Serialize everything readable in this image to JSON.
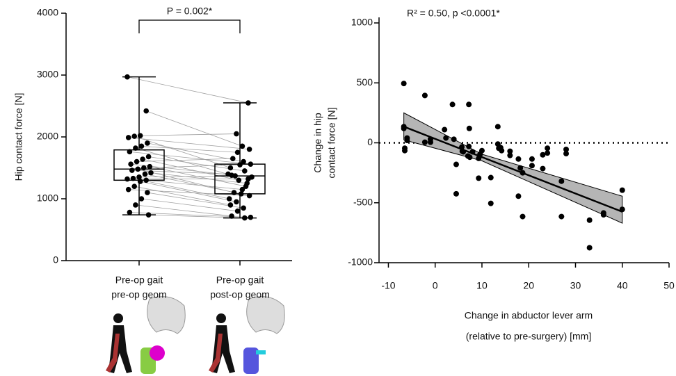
{
  "chart_data": [
    {
      "type": "box",
      "annotation": "P = 0.002*",
      "ylabel": "Hip contact force [N]",
      "categories": [
        [
          "Pre-op gait",
          "pre-op geom"
        ],
        [
          "Pre-op gait",
          "post-op geom"
        ]
      ],
      "ylim": [
        0,
        4000
      ],
      "yticks": [
        0,
        1000,
        2000,
        3000,
        4000
      ],
      "boxes": [
        {
          "min": 740,
          "q1": 1300,
          "median": 1480,
          "q3": 1790,
          "max": 2970
        },
        {
          "min": 690,
          "q1": 1080,
          "median": 1370,
          "q3": 1560,
          "max": 2550
        }
      ],
      "values": [
        [
          2970,
          2420,
          2020,
          2010,
          1990,
          1900,
          1850,
          1820,
          1760,
          1680,
          1640,
          1600,
          1560,
          1520,
          1500,
          1480,
          1460,
          1420,
          1400,
          1350,
          1330,
          1320,
          1300,
          1280,
          1200,
          1150,
          1100,
          1000,
          900,
          780,
          740
        ],
        [
          2550,
          1850,
          2050,
          1500,
          1800,
          1600,
          1750,
          1380,
          1560,
          1450,
          1300,
          1650,
          1350,
          1200,
          1550,
          1100,
          1400,
          1250,
          1080,
          1370,
          1000,
          1320,
          1150,
          950,
          900,
          1050,
          850,
          800,
          720,
          700,
          690
        ]
      ],
      "color": "#000000",
      "pair_color": "#a0a0a0"
    },
    {
      "type": "scatter",
      "annotation": "R² = 0.50, p <0.0001*",
      "ylabel": [
        "Change in hip",
        "contact force [N]"
      ],
      "xlabel": [
        "Change in abductor lever arm",
        "(relative to pre-surgery) [mm]"
      ],
      "xlim": [
        -12,
        50
      ],
      "xticks": [
        -10,
        0,
        10,
        20,
        30,
        40,
        50
      ],
      "ylim": [
        -1000,
        1000
      ],
      "yticks": [
        -1000,
        -500,
        0,
        500,
        1000
      ],
      "x": [
        -6.7,
        -6.7,
        -6.7,
        -6.5,
        -6.5,
        -6,
        -6,
        -2.2,
        -2.2,
        -1,
        -1,
        2,
        2.3,
        3.7,
        4,
        4.5,
        4.5,
        5.7,
        5.8,
        6,
        7,
        7.2,
        7.3,
        7.2,
        7.4,
        8,
        9.3,
        9.3,
        9.6,
        10,
        11.9,
        11.9,
        13.4,
        13.4,
        13.6,
        14,
        14.2,
        16,
        16,
        17.8,
        17.8,
        18.2,
        18.7,
        18.7,
        20.7,
        20.7,
        23,
        23,
        24,
        24,
        27,
        27,
        28,
        28,
        33,
        33,
        36,
        36,
        40,
        40
      ],
      "y": [
        495,
        135,
        120,
        -45,
        -65,
        40,
        20,
        395,
        5,
        30,
        5,
        110,
        40,
        320,
        30,
        -180,
        -425,
        -35,
        -70,
        -75,
        -110,
        320,
        120,
        -30,
        -120,
        -75,
        -295,
        -130,
        -95,
        -65,
        -290,
        -505,
        135,
        -10,
        -45,
        -40,
        -65,
        -70,
        -105,
        -135,
        -445,
        -210,
        -250,
        -615,
        -135,
        -190,
        -100,
        -215,
        -45,
        -85,
        -320,
        -615,
        -55,
        -90,
        -645,
        -875,
        -585,
        -600,
        -395,
        -555
      ],
      "fit": {
        "x": [
          -6.7,
          40
        ],
        "y": [
          135,
          -575
        ]
      },
      "band": {
        "x": [
          -6.7,
          10,
          40
        ],
        "upper": [
          250,
          -95,
          -445
        ],
        "lower": [
          25,
          -150,
          -670
        ]
      },
      "hline": 0,
      "color": "#000000",
      "band_color": "#b5b5b5"
    }
  ]
}
